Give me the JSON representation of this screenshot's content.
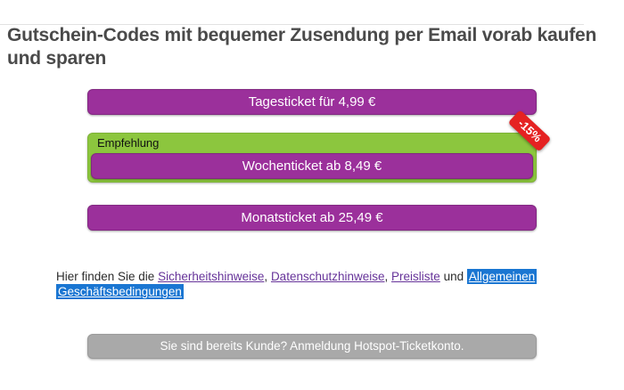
{
  "header": {
    "title": "Gutschein-Codes mit bequemer Zusendung per Email vorab kaufen und sparen"
  },
  "tickets": {
    "day_label": "Tagesticket für 4,99 €",
    "week_label": "Wochenticket ab 8,49 €",
    "month_label": "Monatsticket ab 25,49 €",
    "recommendation_label": "Empfehlung",
    "discount_badge": "-15%"
  },
  "legal": {
    "prefix": "Hier finden Sie die",
    "security_link": "Sicherheitshinweise",
    "privacy_link": "Datenschutzhinweise",
    "pricelist_link": "Preisliste",
    "separator": ",",
    "conjunction": "und",
    "terms_link": "Allgemeinen Geschäftsbedingungen",
    "terms_line1": "Allgemeinen",
    "terms_line2": "Geschäftsbedingungen"
  },
  "account": {
    "login_button": "Sie sind bereits Kunde? Anmeldung Hotspot-Ticketkonto."
  },
  "colors": {
    "brand_purple": "#9b309b",
    "recommendation_green": "#8cc63e",
    "discount_red": "#e52222",
    "secondary_gray": "#a9a9a9",
    "selection_highlight_blue": "#1a76d2",
    "link_purple": "#663399"
  }
}
